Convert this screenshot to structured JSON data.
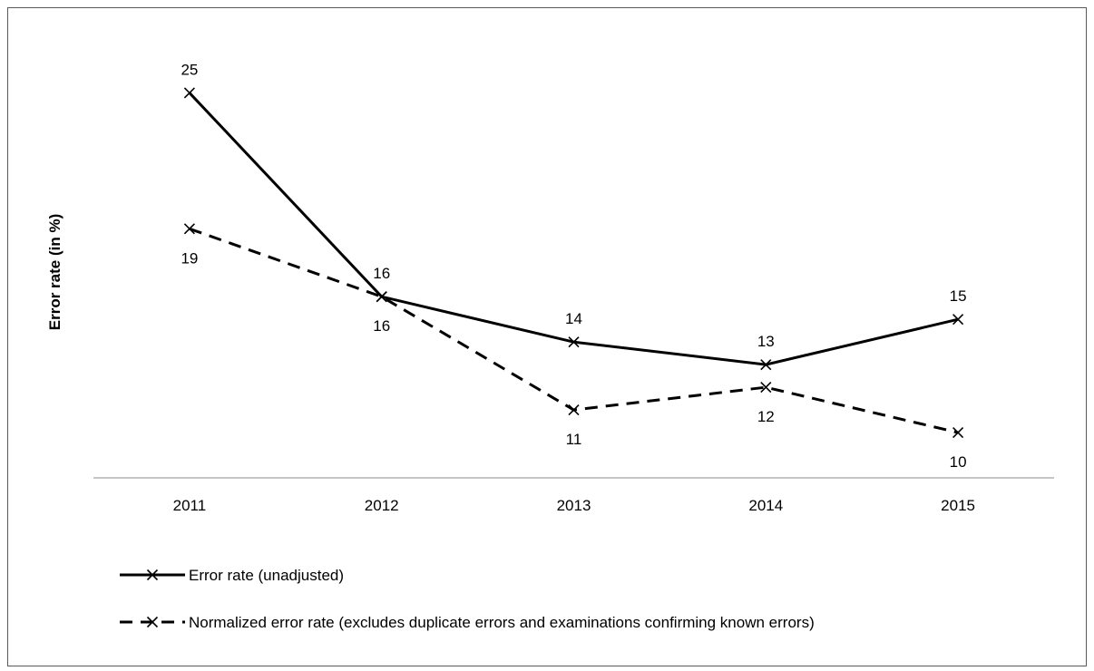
{
  "chart_data": {
    "type": "line",
    "title": "",
    "xlabel": "",
    "ylabel": "Error rate (in %)",
    "categories": [
      "2011",
      "2012",
      "2013",
      "2014",
      "2015"
    ],
    "ylim": [
      8,
      27.5
    ],
    "grid": false,
    "legend_position": "bottom-left",
    "series": [
      {
        "name": "Error rate (unadjusted)",
        "values": [
          25,
          16,
          14,
          13,
          15
        ],
        "line_style": "solid",
        "marker": "x",
        "label_position": "above",
        "color": "#000000"
      },
      {
        "name": "Normalized error rate (excludes duplicate errors and examinations confirming known errors)",
        "values": [
          19,
          16,
          11,
          12,
          10
        ],
        "line_style": "dashed",
        "marker": "x",
        "label_position": "below",
        "color": "#000000"
      }
    ]
  }
}
